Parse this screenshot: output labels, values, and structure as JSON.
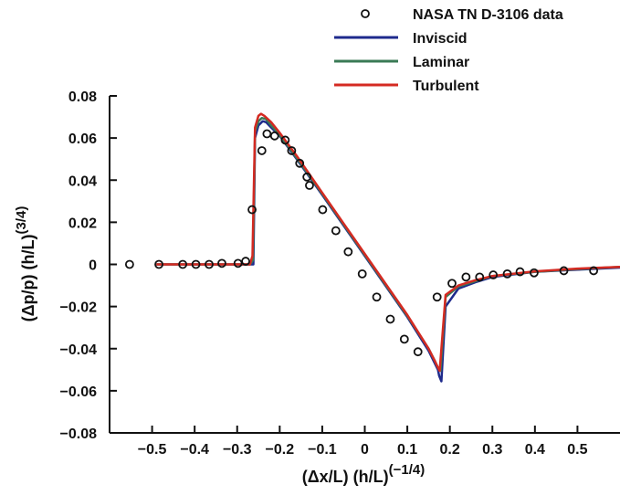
{
  "chart_data": {
    "type": "line",
    "xlabel": {
      "main": "(Δx/L) (h/L)",
      "exponent": "(−1/4)"
    },
    "ylabel": {
      "main": "(Δp/p) (h/L)",
      "exponent": "(3/4)"
    },
    "xlim": [
      -0.6,
      0.6
    ],
    "ylim": [
      -0.08,
      0.08
    ],
    "xticks": [
      -0.5,
      -0.4,
      -0.3,
      -0.2,
      -0.1,
      0,
      0.1,
      0.2,
      0.3,
      0.4,
      0.5
    ],
    "xtick_labels": [
      "−0.5",
      "−0.4",
      "−0.3",
      "−0.2",
      "−0.1",
      "0",
      "0.1",
      "0.2",
      "0.3",
      "0.4",
      "0.5"
    ],
    "yticks": [
      -0.08,
      -0.06,
      -0.04,
      -0.02,
      0,
      0.02,
      0.04,
      0.06,
      0.08
    ],
    "ytick_labels": [
      "−0.08",
      "−0.06",
      "−0.04",
      "−0.02",
      "0",
      "0.02",
      "0.04",
      "0.06",
      "0.08"
    ],
    "grid": false,
    "legend_position": "top-right",
    "scatter": {
      "name": "NASA TN D-3106 data",
      "marker": "open-circle",
      "color": "#111111",
      "x": [
        -0.553,
        -0.484,
        -0.428,
        -0.397,
        -0.366,
        -0.336,
        -0.298,
        -0.28,
        -0.265,
        -0.242,
        -0.23,
        -0.212,
        -0.187,
        -0.172,
        -0.153,
        -0.136,
        -0.13,
        -0.099,
        -0.068,
        -0.039,
        -0.006,
        0.028,
        0.06,
        0.093,
        0.125,
        0.17,
        0.205,
        0.238,
        0.27,
        0.302,
        0.335,
        0.365,
        0.398,
        0.468,
        0.538
      ],
      "y": [
        0.0,
        0.0,
        0.0,
        0.0,
        0.0,
        0.0005,
        0.0005,
        0.0015,
        0.026,
        0.054,
        0.062,
        0.061,
        0.059,
        0.054,
        0.048,
        0.0415,
        0.0375,
        0.026,
        0.016,
        0.006,
        -0.0045,
        -0.0155,
        -0.026,
        -0.0355,
        -0.0415,
        -0.0155,
        -0.009,
        -0.006,
        -0.006,
        -0.005,
        -0.0045,
        -0.0035,
        -0.004,
        -0.003,
        -0.003
      ]
    },
    "series": [
      {
        "name": "Inviscid",
        "color": "#1e2a8c",
        "x": [
          -0.49,
          -0.27,
          -0.262,
          -0.258,
          -0.25,
          -0.24,
          -0.232,
          -0.22,
          -0.2,
          -0.16,
          -0.1,
          0.0,
          0.1,
          0.15,
          0.172,
          0.175,
          0.18,
          0.19,
          0.22,
          0.26,
          0.3,
          0.4,
          0.5,
          0.6
        ],
        "y": [
          0.0,
          0.0,
          0.0,
          0.06,
          0.066,
          0.068,
          0.0675,
          0.065,
          0.061,
          0.05,
          0.033,
          0.004,
          -0.025,
          -0.041,
          -0.05,
          -0.053,
          -0.0555,
          -0.02,
          -0.0115,
          -0.0085,
          -0.006,
          -0.0035,
          -0.0025,
          -0.0015
        ]
      },
      {
        "name": "Laminar",
        "color": "#3a7a55",
        "x": [
          -0.49,
          -0.27,
          -0.263,
          -0.258,
          -0.25,
          -0.242,
          -0.232,
          -0.22,
          -0.2,
          -0.16,
          -0.1,
          0.0,
          0.1,
          0.15,
          0.165,
          0.172,
          0.178,
          0.19,
          0.22,
          0.26,
          0.3,
          0.4,
          0.5,
          0.6
        ],
        "y": [
          0.0,
          0.0,
          0.002,
          0.063,
          0.068,
          0.0695,
          0.069,
          0.066,
          0.0615,
          0.0505,
          0.0335,
          0.0045,
          -0.0245,
          -0.04,
          -0.046,
          -0.049,
          -0.0505,
          -0.0155,
          -0.0105,
          -0.008,
          -0.0055,
          -0.0035,
          -0.0022,
          -0.0012
        ]
      },
      {
        "name": "Turbulent",
        "color": "#d42a22",
        "x": [
          -0.49,
          -0.27,
          -0.264,
          -0.258,
          -0.25,
          -0.244,
          -0.236,
          -0.22,
          -0.2,
          -0.16,
          -0.1,
          0.0,
          0.1,
          0.15,
          0.165,
          0.172,
          0.176,
          0.19,
          0.22,
          0.26,
          0.3,
          0.4,
          0.5,
          0.6
        ],
        "y": [
          0.0,
          0.0,
          0.004,
          0.065,
          0.0705,
          0.0715,
          0.0705,
          0.0675,
          0.0625,
          0.0515,
          0.034,
          0.005,
          -0.024,
          -0.04,
          -0.046,
          -0.049,
          -0.0505,
          -0.0145,
          -0.01,
          -0.0075,
          -0.0055,
          -0.0033,
          -0.002,
          -0.0012
        ]
      }
    ]
  }
}
